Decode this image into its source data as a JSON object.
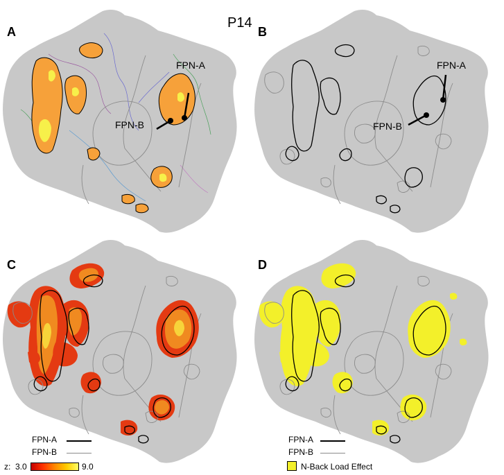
{
  "subject_label": "P14",
  "panels": {
    "A": {
      "letter": "A"
    },
    "B": {
      "letter": "B"
    },
    "C": {
      "letter": "C"
    },
    "D": {
      "letter": "D"
    }
  },
  "callouts": {
    "fpn_a": "FPN-A",
    "fpn_b": "FPN-B"
  },
  "legend_c": {
    "fpn_a": "FPN-A",
    "fpn_b": "FPN-B",
    "z_prefix": "z:",
    "z_min": "3.0",
    "z_max": "9.0"
  },
  "legend_d": {
    "fpn_a": "FPN-A",
    "fpn_b": "FPN-B",
    "effect": "N-Back Load Effect"
  },
  "colors": {
    "brain": "#c8c8c8",
    "activation_orange": "#f6a13a",
    "activation_yellow": "#f7f04a",
    "heat_red": "#e43a12",
    "load_yellow": "#f3f02a",
    "outline_a": "#000000",
    "outline_b": "#8a8a8a"
  }
}
